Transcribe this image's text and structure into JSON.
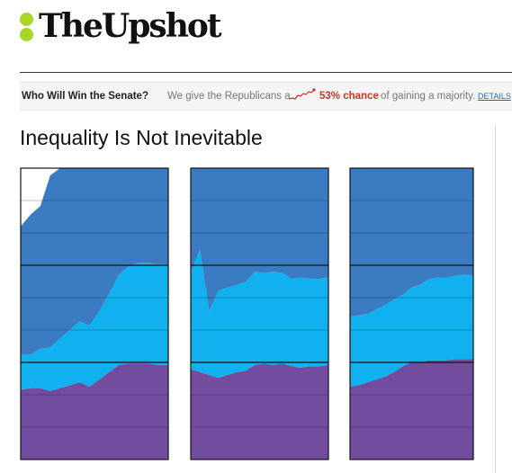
{
  "brand": {
    "name": "TheUpshot"
  },
  "promo": {
    "question": "Who Will Win the Senate?",
    "description": "We give the Republicans a",
    "chance": "53% chance",
    "rest": "of gaining a majority.",
    "details": "DETAILS"
  },
  "article": {
    "headline": "Inequality Is Not Inevitable"
  },
  "colors": {
    "top": "#3b7bc2",
    "middle": "#11b0ee",
    "bottom": "#724c9e",
    "accent": "#a8d52a",
    "chance": "#c0392b"
  },
  "chart_data": [
    {
      "type": "area",
      "x": [
        0,
        1,
        2,
        3,
        4,
        5,
        6,
        7,
        8,
        9,
        10,
        11,
        12,
        13,
        14,
        15
      ],
      "series": [
        {
          "values": [
            24,
            24.5,
            24.5,
            23.5,
            24.5,
            25.5,
            26.5,
            25,
            27.5,
            30,
            32.5,
            33,
            33,
            33,
            32.5,
            32.5
          ]
        },
        {
          "values": [
            12,
            11.5,
            13.5,
            15,
            17,
            19,
            21,
            21,
            23.5,
            27,
            31,
            33.5,
            34.5,
            34.5,
            34.5,
            34.5
          ]
        },
        {
          "values": [
            44,
            48,
            49,
            59,
            100,
            100,
            100,
            100,
            100,
            100,
            100,
            100,
            100,
            100,
            100,
            100
          ]
        }
      ],
      "ylim": [
        0,
        100
      ]
    },
    {
      "type": "area",
      "x": [
        0,
        1,
        2,
        3,
        4,
        5,
        6,
        7,
        8,
        9,
        10,
        11,
        12,
        13,
        14,
        15
      ],
      "series": [
        {
          "values": [
            31,
            30,
            29,
            28,
            29,
            30,
            30.5,
            32.5,
            33,
            32.5,
            33,
            32,
            31.5,
            32,
            32,
            32.5
          ]
        },
        {
          "values": [
            33,
            42,
            22,
            30,
            30,
            30,
            30.5,
            32,
            31,
            32,
            31,
            30,
            31,
            30,
            30,
            30
          ]
        },
        {
          "values": [
            100,
            100,
            100,
            100,
            100,
            100,
            100,
            100,
            100,
            100,
            100,
            100,
            100,
            100,
            100,
            100
          ]
        }
      ],
      "ylim": [
        0,
        100
      ]
    },
    {
      "type": "area",
      "x": [
        0,
        1,
        2,
        3,
        4,
        5,
        6,
        7,
        8,
        9,
        10,
        11,
        12,
        13,
        14
      ],
      "series": [
        {
          "values": [
            25,
            25.5,
            26.5,
            27.5,
            28.5,
            30,
            32,
            33.5,
            33.5,
            34,
            34,
            34,
            34.5,
            34.5,
            34.5
          ]
        },
        {
          "values": [
            24,
            24,
            23.5,
            24,
            24.5,
            25,
            24.5,
            25.5,
            26.5,
            28,
            28.5,
            28.5,
            28.5,
            29,
            28.5
          ]
        },
        {
          "values": [
            86,
            89,
            91,
            93,
            100,
            100,
            100,
            100,
            100,
            100,
            100,
            100,
            100,
            100,
            100
          ]
        }
      ],
      "ylim": [
        0,
        100
      ]
    }
  ]
}
